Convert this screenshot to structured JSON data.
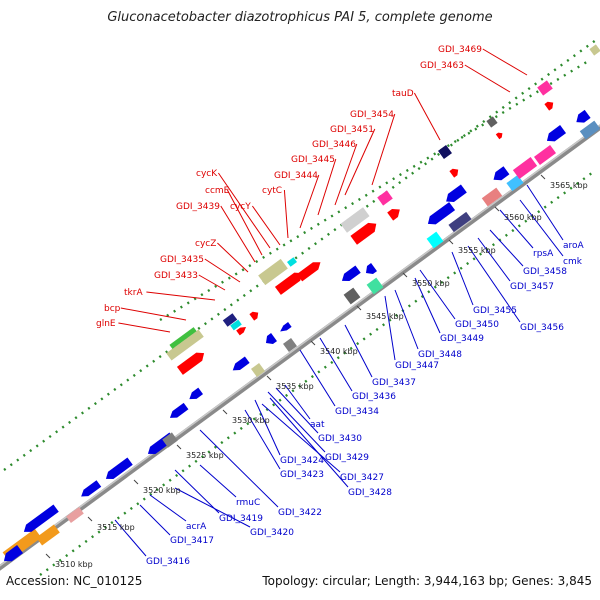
{
  "title": "Gluconacetobacter diazotrophicus PAI 5, complete genome",
  "footer": {
    "accession": "Accession: NC_010125",
    "topology": "Topology: circular; Length: 3,944,163 bp; Genes: 3,845"
  },
  "colors": {
    "label_forward": "#dd0000",
    "label_reverse": "#0000cc",
    "backbone": "#8a8a8a",
    "dots": "#2e8b2e"
  },
  "kbp_ticks": [
    "3510 kbp",
    "3515 kbp",
    "3520 kbp",
    "3525 kbp",
    "3530 kbp",
    "3535 kbp",
    "3540 kbp",
    "3545 kbp",
    "3550 kbp",
    "3555 kbp",
    "3560 kbp",
    "3565 kbp"
  ],
  "forward_labels": [
    "GDI_3469",
    "GDI_3463",
    "tauD",
    "GDI_3454",
    "GDI_3451",
    "GDI_3446",
    "GDI_3445",
    "GDI_3444",
    "cycK",
    "cytC",
    "ccmE",
    "GDI_3439",
    "cycY",
    "cycZ",
    "GDI_3435",
    "GDI_3433",
    "tkrA",
    "bcp",
    "glnE"
  ],
  "reverse_labels": [
    "aroA",
    "cmk",
    "rpsA",
    "GDI_3458",
    "GDI_3457",
    "GDI_3456",
    "GDI_3455",
    "GDI_3450",
    "GDI_3449",
    "GDI_3448",
    "GDI_3447",
    "GDI_3437",
    "GDI_3436",
    "GDI_3434",
    "aat",
    "GDI_3430",
    "GDI_3429",
    "GDI_3424",
    "GDI_3423",
    "GDI_3427",
    "GDI_3428",
    "GDI_3422",
    "rmuC",
    "GDI_3419",
    "GDI_3420",
    "acrA",
    "GDI_3417",
    "GDI_3416"
  ]
}
